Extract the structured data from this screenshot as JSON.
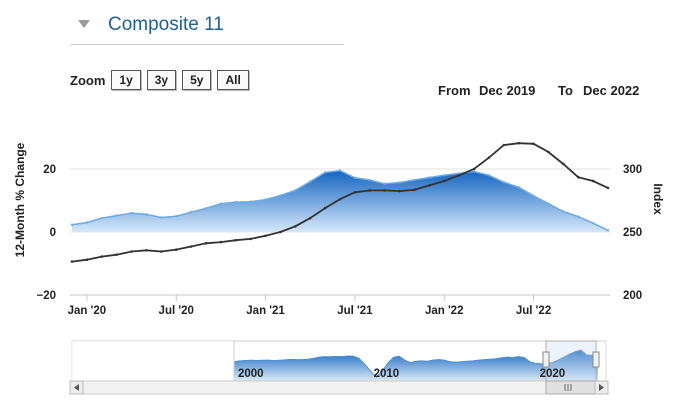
{
  "header": {
    "title": "Composite 11",
    "collapse_icon": "triangle-down-icon"
  },
  "zoom": {
    "label": "Zoom",
    "buttons": [
      "1y",
      "3y",
      "5y",
      "All"
    ]
  },
  "range": {
    "from_label": "From",
    "from_value": "Dec 2019",
    "to_label": "To",
    "to_value": "Dec 2022"
  },
  "colors": {
    "area_top": "#1565c0",
    "area_bottom": "#d6e8fa",
    "area_edge": "#6aaae8",
    "line": "#333333",
    "grid": "#e2e2e2",
    "title": "#1f5f99"
  },
  "chart_data": {
    "type": "line",
    "title": "Composite 11",
    "xlabel": "",
    "ylabel_left": "12-Month % Change",
    "ylabel_right": "Index",
    "x_ticks": [
      "Jan '20",
      "Jul '20",
      "Jan '21",
      "Jul '21",
      "Jan '22",
      "Jul '22"
    ],
    "y_left_ticks": [
      "20",
      "0",
      "−20"
    ],
    "y_right_ticks": [
      "300",
      "250",
      "200"
    ],
    "ylim_left": [
      -20,
      40
    ],
    "ylim_right": [
      200,
      350
    ],
    "x": [
      "Dec 2019",
      "Jan 2020",
      "Feb 2020",
      "Mar 2020",
      "Apr 2020",
      "May 2020",
      "Jun 2020",
      "Jul 2020",
      "Aug 2020",
      "Sep 2020",
      "Oct 2020",
      "Nov 2020",
      "Dec 2020",
      "Jan 2021",
      "Feb 2021",
      "Mar 2021",
      "Apr 2021",
      "May 2021",
      "Jun 2021",
      "Jul 2021",
      "Aug 2021",
      "Sep 2021",
      "Oct 2021",
      "Nov 2021",
      "Dec 2021",
      "Jan 2022",
      "Feb 2022",
      "Mar 2022",
      "Apr 2022",
      "May 2022",
      "Jun 2022",
      "Jul 2022",
      "Aug 2022",
      "Sep 2022",
      "Oct 2022",
      "Nov 2022",
      "Dec 2022"
    ],
    "series": [
      {
        "name": "12-Month % Change",
        "axis": "left",
        "style": "area",
        "values": [
          2.3,
          3.0,
          4.4,
          5.2,
          6.0,
          5.6,
          4.6,
          5.0,
          6.3,
          7.5,
          9.0,
          9.5,
          9.6,
          10.3,
          11.6,
          13.2,
          16.0,
          18.9,
          19.5,
          17.2,
          16.5,
          15.3,
          15.7,
          16.5,
          17.3,
          18.0,
          18.6,
          19.2,
          18.0,
          15.8,
          14.2,
          11.5,
          9.0,
          6.5,
          4.9,
          2.8,
          0.5
        ]
      },
      {
        "name": "Index",
        "axis": "right",
        "style": "line",
        "values": [
          226.5,
          228.0,
          230.5,
          232.0,
          234.5,
          235.5,
          234.5,
          236.0,
          238.5,
          241.0,
          242.0,
          243.5,
          244.5,
          247.0,
          250.0,
          254.5,
          261.0,
          269.0,
          276.0,
          281.5,
          283.0,
          283.0,
          282.5,
          283.5,
          287.0,
          290.5,
          295.0,
          300.0,
          309.0,
          319.0,
          320.5,
          320.0,
          313.5,
          304.0,
          293.5,
          290.5,
          285.0
        ]
      }
    ]
  },
  "navigator": {
    "labels": [
      "2000",
      "2010",
      "2020"
    ],
    "values": [
      5,
      6,
      6.5,
      6.8,
      6.5,
      6.8,
      7,
      6.4,
      6.8,
      7.2,
      7.8,
      7.5,
      7.7,
      8,
      9,
      10.5,
      11,
      10.8,
      11.2,
      11,
      11.8,
      11.5,
      9,
      2,
      -6,
      -13,
      -7,
      3,
      10,
      11.5,
      7,
      4,
      5.5,
      6,
      5.5,
      7,
      7.5,
      7,
      5,
      4.5,
      5,
      5.5,
      6,
      7,
      7.5,
      8,
      8.5,
      9.5,
      10.5,
      10,
      11,
      10,
      5,
      3,
      2.5,
      3,
      4,
      7,
      10.5,
      14,
      17,
      19,
      13,
      12.5,
      6
    ]
  }
}
